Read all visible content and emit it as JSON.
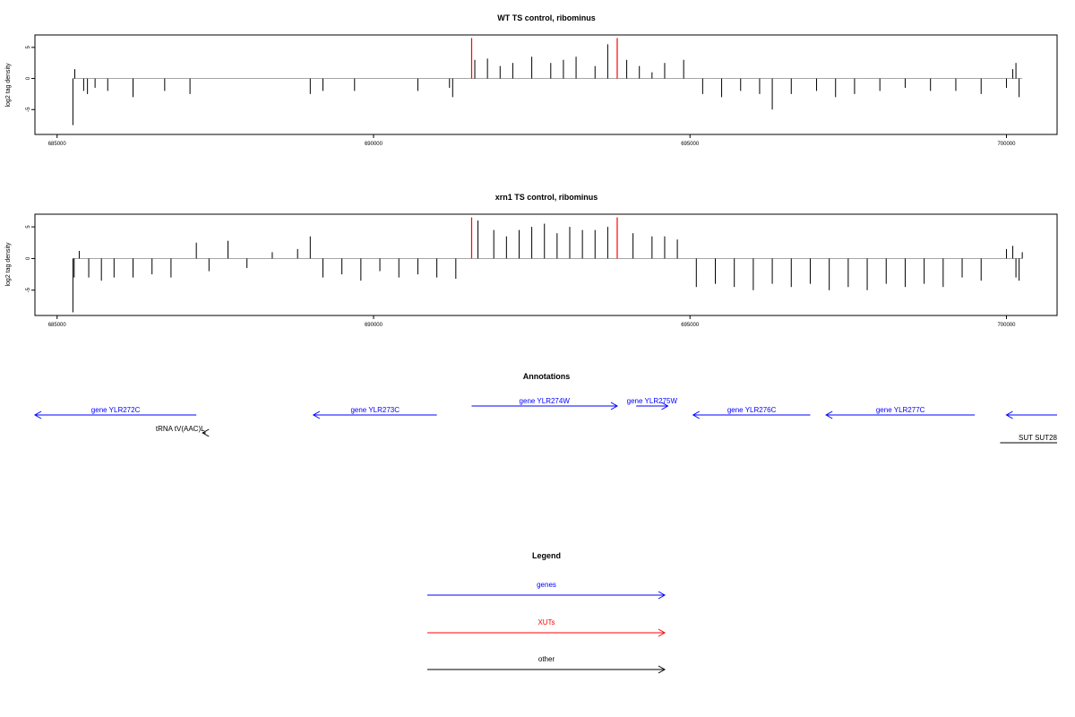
{
  "colors": {
    "genes": "#0000ff",
    "xuts": "#ff0000",
    "other": "#000000",
    "axis": "#000000",
    "baseline": "#999999"
  },
  "chart_data": [
    {
      "type": "bar",
      "title": "WT TS control, ribominus",
      "ylabel": "log2 tag density",
      "xlim": [
        684650,
        700800
      ],
      "ylim": [
        -9,
        7
      ],
      "xticks": [
        685000,
        690000,
        695000,
        700000
      ],
      "yticks": [
        5,
        0,
        -5
      ],
      "series": [
        {
          "color": "#000000",
          "x": [
            685250,
            685280,
            685420,
            685480,
            685600,
            685800,
            686200,
            686700,
            687100,
            689000,
            689200,
            689700,
            690700,
            691200,
            691250,
            691600,
            691800,
            692000,
            692200,
            692500,
            692800,
            693000,
            693200,
            693500,
            693700,
            694000,
            694200,
            694400,
            694600,
            694900,
            695200,
            695500,
            695800,
            696100,
            696300,
            696600,
            697000,
            697300,
            697600,
            698000,
            698400,
            698800,
            699200,
            699600,
            700000,
            700100,
            700150,
            700200
          ],
          "values": [
            -7.5,
            1.5,
            -2,
            -2.5,
            -1.5,
            -2,
            -3,
            -2,
            -2.5,
            -2.5,
            -2,
            -2,
            -2,
            -1.5,
            -3,
            3,
            3.2,
            2,
            2.5,
            3.5,
            2.5,
            3,
            3.5,
            2,
            5.5,
            3,
            2,
            1,
            2.5,
            3,
            -2.5,
            -3,
            -2,
            -2.5,
            -5,
            -2.5,
            -2,
            -3,
            -2.5,
            -2,
            -1.5,
            -2,
            -2,
            -2.5,
            -1.5,
            1.5,
            2.5,
            -3
          ]
        },
        {
          "color": "#ff0000",
          "x": [
            691550,
            693850
          ],
          "values": [
            6.5,
            6.5
          ]
        }
      ]
    },
    {
      "type": "bar",
      "title": "xrn1 TS control, ribominus",
      "ylabel": "log2 tag density",
      "xlim": [
        684650,
        700800
      ],
      "ylim": [
        -9,
        7
      ],
      "xticks": [
        685000,
        690000,
        695000,
        700000
      ],
      "yticks": [
        5,
        0,
        -5
      ],
      "series": [
        {
          "color": "#000000",
          "x": [
            685250,
            685270,
            685350,
            685500,
            685700,
            685900,
            686200,
            686500,
            686800,
            687200,
            687400,
            687700,
            688000,
            688400,
            688800,
            689000,
            689200,
            689500,
            689800,
            690100,
            690400,
            690700,
            691000,
            691300,
            691650,
            691900,
            692100,
            692300,
            692500,
            692700,
            692900,
            693100,
            693300,
            693500,
            693700,
            694100,
            694400,
            694600,
            694800,
            695100,
            695400,
            695700,
            696000,
            696300,
            696600,
            696900,
            697200,
            697500,
            697800,
            698100,
            698400,
            698700,
            699000,
            699300,
            699600,
            700000,
            700100,
            700150,
            700200,
            700250
          ],
          "values": [
            -8.5,
            -3,
            1.2,
            -3,
            -3.5,
            -3,
            -3,
            -2.5,
            -3,
            2.5,
            -2,
            2.8,
            -1.5,
            1,
            1.5,
            3.5,
            -3,
            -2.5,
            -3.5,
            -2,
            -3,
            -2.5,
            -3,
            -3.2,
            6,
            4.5,
            3.5,
            4.5,
            5,
            5.5,
            4,
            5,
            4.5,
            4.5,
            5,
            4,
            3.5,
            3.5,
            3,
            -4.5,
            -4,
            -4.5,
            -5,
            -4,
            -4.5,
            -4,
            -5,
            -4.5,
            -5,
            -4,
            -4.5,
            -4,
            -4.5,
            -3,
            -3.5,
            1.5,
            2,
            -3,
            -3.5,
            1
          ]
        },
        {
          "color": "#ff0000",
          "x": [
            691550,
            693850
          ],
          "values": [
            6.5,
            6.5
          ]
        }
      ]
    }
  ],
  "annotations": {
    "title": "Annotations",
    "items": [
      {
        "label": "gene YLR272C",
        "color": "#0000ff",
        "x1": 684650,
        "x2": 687200,
        "dir": "left",
        "row": 1
      },
      {
        "label": "tRNA tV(AAC)L",
        "color": "#000000",
        "x1": 687300,
        "x2": 687350,
        "dir": "left",
        "row": 2
      },
      {
        "label": "gene YLR273C",
        "color": "#0000ff",
        "x1": 689050,
        "x2": 691000,
        "dir": "left",
        "row": 1
      },
      {
        "label": "gene YLR274W",
        "color": "#0000ff",
        "x1": 691550,
        "x2": 693850,
        "dir": "right",
        "row": 0
      },
      {
        "label": "gene YLR275W",
        "color": "#0000ff",
        "x1": 694150,
        "x2": 694650,
        "dir": "right",
        "row": 0
      },
      {
        "label": "gene YLR276C",
        "color": "#0000ff",
        "x1": 695050,
        "x2": 696900,
        "dir": "left",
        "row": 1
      },
      {
        "label": "gene YLR277C",
        "color": "#0000ff",
        "x1": 697150,
        "x2": 699500,
        "dir": "left",
        "row": 1
      },
      {
        "label": "",
        "color": "#0000ff",
        "x1": 700000,
        "x2": 700800,
        "dir": "left",
        "row": 1
      },
      {
        "label": "SUT SUT28",
        "color": "#000000",
        "x1": 699900,
        "x2": 700800,
        "dir": "none",
        "row": 3
      }
    ]
  },
  "legend": {
    "title": "Legend",
    "items": [
      {
        "label": "genes",
        "color": "#0000ff"
      },
      {
        "label": "XUTs",
        "color": "#ff0000"
      },
      {
        "label": "other",
        "color": "#000000"
      }
    ]
  }
}
